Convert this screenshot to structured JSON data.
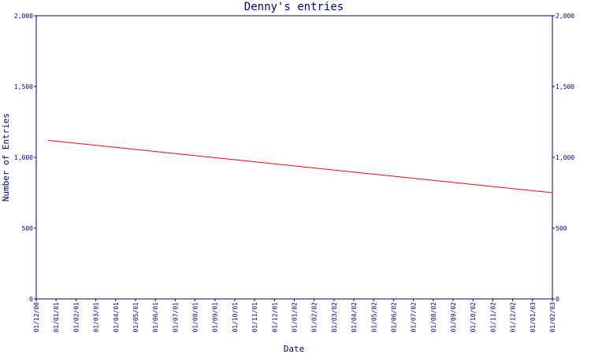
{
  "chart_data": {
    "type": "line",
    "title": "Denny's entries",
    "xlabel": "Date",
    "ylabel": "Number of Entries",
    "x_ticks": [
      "01/12/00",
      "01/01/01",
      "01/02/01",
      "01/03/01",
      "01/04/01",
      "01/05/01",
      "01/06/01",
      "01/07/01",
      "01/08/01",
      "01/09/01",
      "01/10/01",
      "01/11/01",
      "01/12/01",
      "01/01/02",
      "01/02/02",
      "01/03/02",
      "01/04/02",
      "01/05/02",
      "01/06/02",
      "01/07/02",
      "01/08/02",
      "01/09/02",
      "01/10/02",
      "01/11/02",
      "01/12/02",
      "01/01/03",
      "01/02/03"
    ],
    "y_ticks": [
      "0",
      "500",
      "1,000",
      "1,500",
      "2,000"
    ],
    "ylim": [
      0,
      2000
    ],
    "xlim": [
      "2000-12-01",
      "2003-02-01"
    ],
    "grid": false,
    "series": [
      {
        "color": "#ff0000",
        "x": [
          "2000-12-19",
          "2003-02-01"
        ],
        "y": [
          1120,
          750
        ]
      }
    ]
  }
}
